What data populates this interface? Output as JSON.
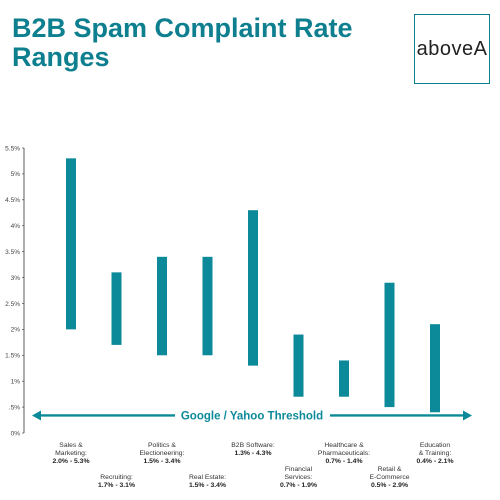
{
  "header": {
    "title": "B2B Spam Complaint Rate Ranges",
    "logo_text": "aboveA"
  },
  "colors": {
    "accent": "#0d8a99",
    "title": "#0d7f8f",
    "logo_border": "#0d7f8f"
  },
  "chart_data": {
    "type": "bar",
    "subtype": "floating-range",
    "title": "",
    "xlabel": "",
    "ylabel": "",
    "ylim": [
      0,
      5.5
    ],
    "yticks": [
      {
        "value": 0,
        "label": "0%"
      },
      {
        "value": 0.5,
        "label": ".5%"
      },
      {
        "value": 1,
        "label": "1%"
      },
      {
        "value": 1.5,
        "label": "1.5%"
      },
      {
        "value": 2,
        "label": "2%"
      },
      {
        "value": 2.5,
        "label": "2.5%"
      },
      {
        "value": 3,
        "label": "3%"
      },
      {
        "value": 3.5,
        "label": "3.5%"
      },
      {
        "value": 4,
        "label": "4%"
      },
      {
        "value": 4.5,
        "label": "4.5%"
      },
      {
        "value": 5,
        "label": "5%"
      },
      {
        "value": 5.5,
        "label": "5.5%"
      }
    ],
    "categories": [
      {
        "name": [
          "Sales &",
          "Marketing:"
        ],
        "range_label": "2.0% - 5.3%",
        "low": 2.0,
        "high": 5.3,
        "label_row": "top"
      },
      {
        "name": [
          "Recruiting:"
        ],
        "range_label": "1.7% - 3.1%",
        "low": 1.7,
        "high": 3.1,
        "label_row": "bottom"
      },
      {
        "name": [
          "Politics &",
          "Electioneering:"
        ],
        "range_label": "1.5% - 3.4%",
        "low": 1.5,
        "high": 3.4,
        "label_row": "top"
      },
      {
        "name": [
          "Real Estate:"
        ],
        "range_label": "1.5% - 3.4%",
        "low": 1.5,
        "high": 3.4,
        "label_row": "bottom"
      },
      {
        "name": [
          "B2B Software:"
        ],
        "range_label": "1.3% - 4.3%",
        "low": 1.3,
        "high": 4.3,
        "label_row": "top"
      },
      {
        "name": [
          "Financial",
          "Services:"
        ],
        "range_label": "0.7% - 1.9%",
        "low": 0.7,
        "high": 1.9,
        "label_row": "bottom"
      },
      {
        "name": [
          "Healthcare &",
          "Pharmaceuticals:"
        ],
        "range_label": "0.7% - 1.4%",
        "low": 0.7,
        "high": 1.4,
        "label_row": "top"
      },
      {
        "name": [
          "Retail &",
          "E-Commerce"
        ],
        "range_label": "0.5% - 2.9%",
        "low": 0.5,
        "high": 2.9,
        "label_row": "bottom"
      },
      {
        "name": [
          "Education",
          "& Training:"
        ],
        "range_label": "0.4% - 2.1%",
        "low": 0.4,
        "high": 2.1,
        "label_row": "top"
      }
    ],
    "threshold": {
      "label": "Google / Yahoo Threshold",
      "value": 0.3
    },
    "grid": false,
    "legend": "none"
  }
}
